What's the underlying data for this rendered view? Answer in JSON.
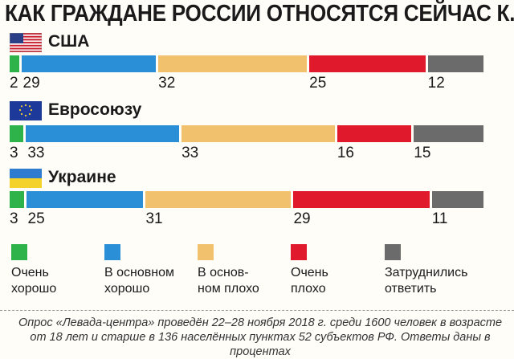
{
  "chart_data": {
    "type": "bar",
    "title": "КАК ГРАЖДАНЕ РОССИИ ОТНОСЯТСЯ СЕЙЧАС К...",
    "categories": [
      "США",
      "Евросоюзу",
      "Украине"
    ],
    "series": [
      {
        "name": "Очень хорошо",
        "values": [
          2,
          3,
          3
        ]
      },
      {
        "name": "В основном хорошо",
        "values": [
          29,
          33,
          25
        ]
      },
      {
        "name": "В основном плохо",
        "values": [
          32,
          33,
          31
        ]
      },
      {
        "name": "Очень плохо",
        "values": [
          25,
          16,
          29
        ]
      },
      {
        "name": "Затруднились ответить",
        "values": [
          12,
          15,
          11
        ]
      }
    ],
    "stacked": true,
    "orientation": "horizontal",
    "legend_position": "bottom"
  },
  "colors": {
    "very_good": "#2db34a",
    "mostly_good": "#2a8fd6",
    "mostly_bad": "#f2c16e",
    "very_bad": "#e0192d",
    "hard_to_say": "#6b6b6b"
  },
  "legend": [
    {
      "line1": "Очень",
      "line2": "хорошо"
    },
    {
      "line1": "В основном",
      "line2": "хорошо"
    },
    {
      "line1": "В основ-",
      "line2": "ном плохо"
    },
    {
      "line1": "Очень",
      "line2": "плохо"
    },
    {
      "line1": "Затруднились",
      "line2": "ответить"
    }
  ],
  "flags": [
    "usa-flag-icon",
    "eu-flag-icon",
    "ukraine-flag-icon"
  ],
  "note": "Опрос «Левада-центра» проведён 22–28 ноября 2018 г. среди 1600 человек в возрасте от 18 лет и старше в 136 населённых пунктах 52 субъектов РФ. Ответы даны в процентах"
}
